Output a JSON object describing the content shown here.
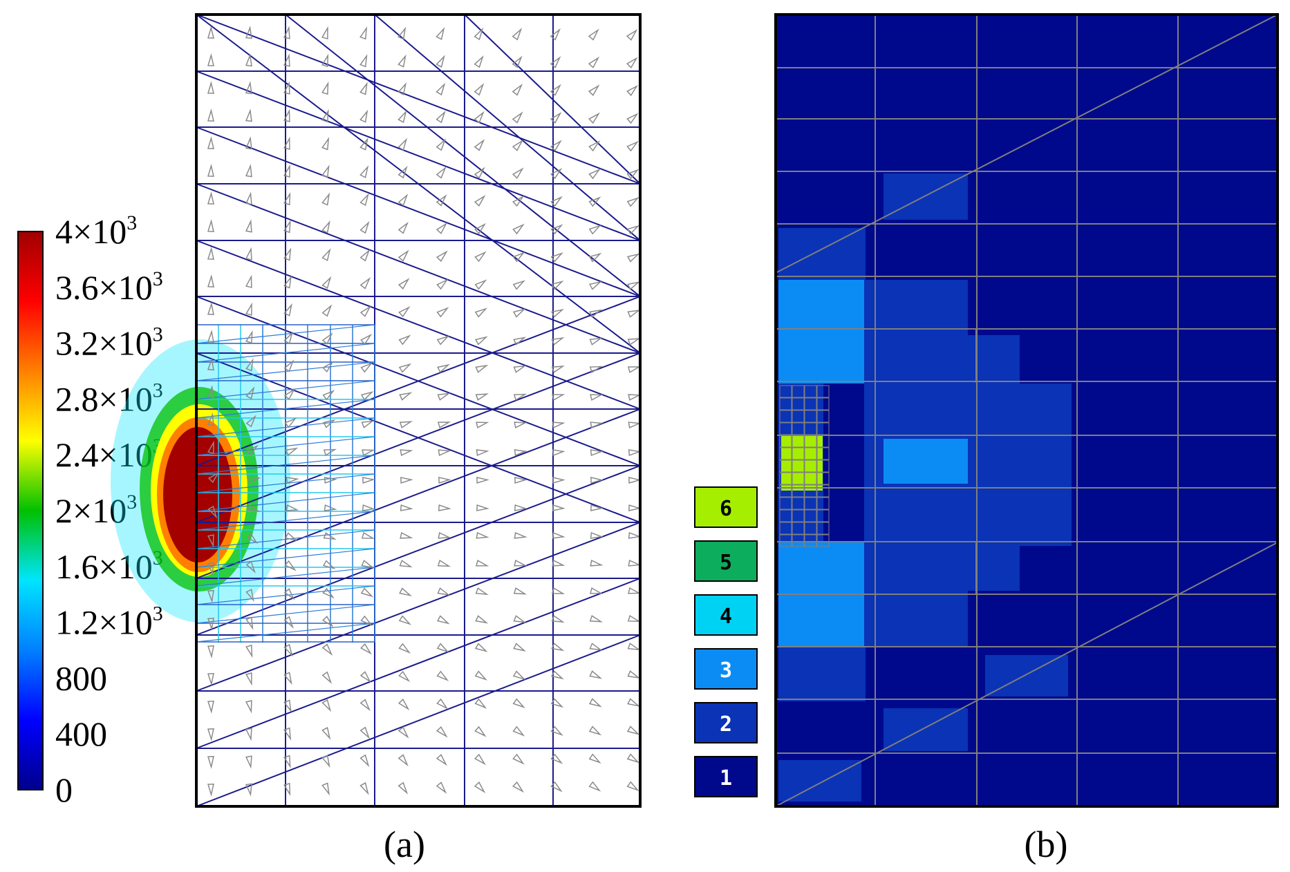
{
  "panel_a": {
    "caption": "(a)",
    "colorbar": {
      "ticks": [
        {
          "value": 4000,
          "base": "4×10",
          "exp": "3"
        },
        {
          "value": 3600,
          "base": "3.6×10",
          "exp": "3"
        },
        {
          "value": 3200,
          "base": "3.2×10",
          "exp": "3"
        },
        {
          "value": 2800,
          "base": "2.8×10",
          "exp": "3"
        },
        {
          "value": 2400,
          "base": "2.4×10",
          "exp": "3"
        },
        {
          "value": 2000,
          "base": "2×10",
          "exp": "3"
        },
        {
          "value": 1600,
          "base": "1.6×10",
          "exp": "3"
        },
        {
          "value": 1200,
          "base": "1.2×10",
          "exp": "3"
        },
        {
          "value": 800,
          "base": "800",
          "exp": ""
        },
        {
          "value": 400,
          "base": "400",
          "exp": ""
        },
        {
          "value": 0,
          "base": "0",
          "exp": ""
        }
      ],
      "range": [
        0,
        4000
      ],
      "colormap": [
        "#00008b",
        "#0000ff",
        "#0080ff",
        "#00e5ff",
        "#00c000",
        "#ffff00",
        "#ff8000",
        "#ff0000",
        "#a00000"
      ]
    },
    "mesh_color": "#1a1a8c",
    "arrow_color": "#8a8a8a"
  },
  "panel_b": {
    "caption": "(b)",
    "grid_color": "#7f7f7f",
    "legend": [
      {
        "label": "6",
        "color": "#a6ee00",
        "text_color": "#000000"
      },
      {
        "label": "5",
        "color": "#0cad5c",
        "text_color": "#000000"
      },
      {
        "label": "4",
        "color": "#00d2f3",
        "text_color": "#000000"
      },
      {
        "label": "3",
        "color": "#0b8cf5",
        "text_color": "#ffffff"
      },
      {
        "label": "2",
        "color": "#0a33b6",
        "text_color": "#ffffff"
      },
      {
        "label": "1",
        "color": "#00098c",
        "text_color": "#ffffff"
      }
    ]
  }
}
